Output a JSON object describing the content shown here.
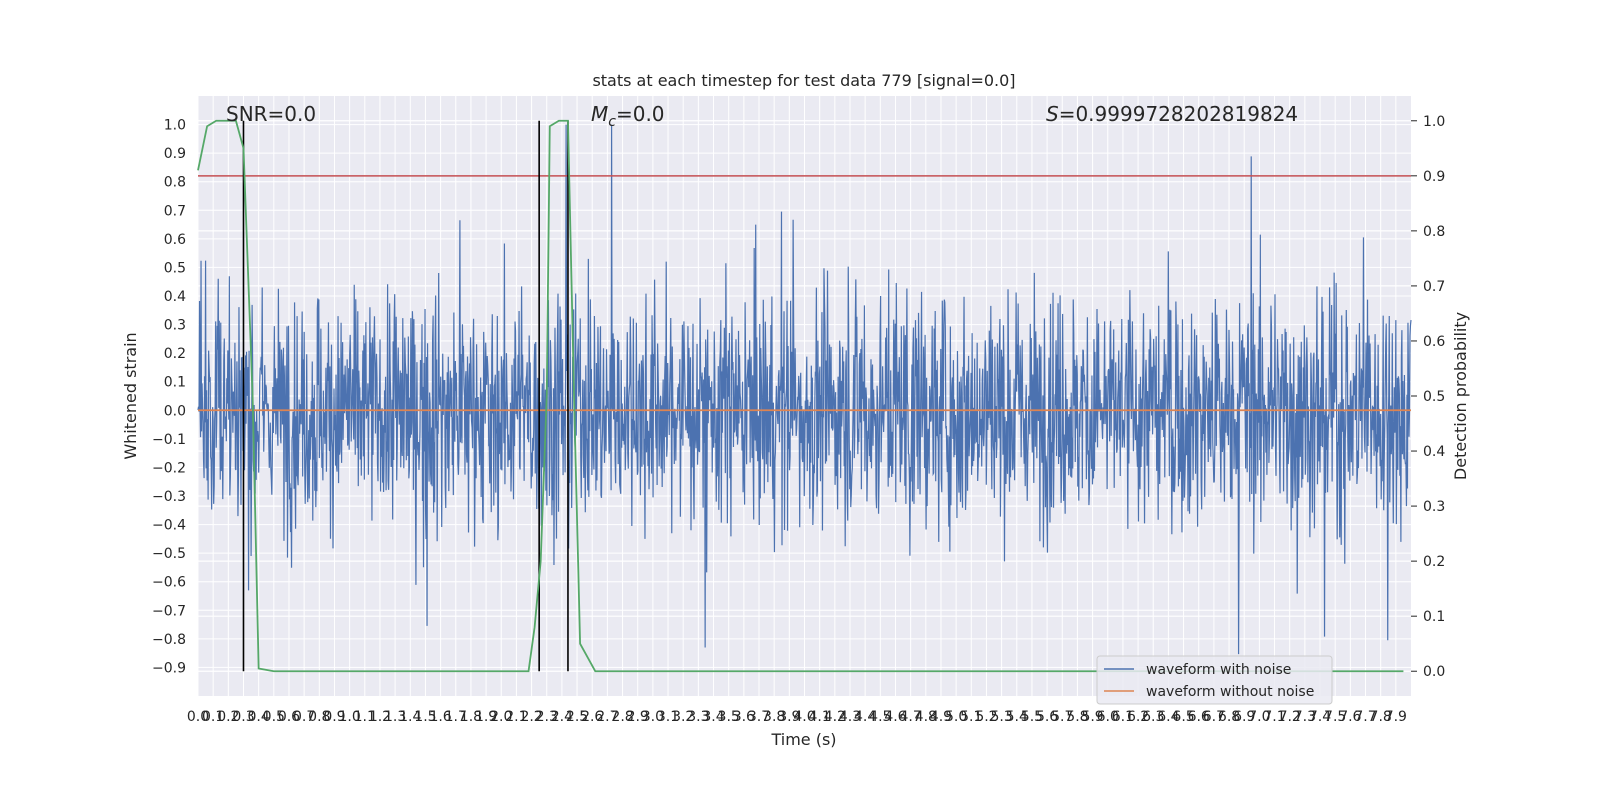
{
  "chart_data": {
    "type": "line",
    "title": "stats at each timestep for test data 779 [signal=0.0]",
    "xlabel": "Time (s)",
    "ylabel": "Whitened strain",
    "y2label": "Detection probability",
    "xlim": [
      0.0,
      8.0
    ],
    "ylim": [
      -1.0,
      1.1
    ],
    "y2lim": [
      -0.045,
      1.045
    ],
    "x_ticks": [
      "0.0",
      "0.1",
      "0.2",
      "0.3",
      "0.4",
      "0.5",
      "0.6",
      "0.7",
      "0.8",
      "0.9",
      "1.0",
      "1.1",
      "1.2",
      "1.3",
      "1.4",
      "1.5",
      "1.6",
      "1.7",
      "1.8",
      "1.9",
      "2.0",
      "2.1",
      "2.2",
      "2.3",
      "2.4",
      "2.5",
      "2.6",
      "2.7",
      "2.8",
      "2.9",
      "3.0",
      "3.1",
      "3.2",
      "3.3",
      "3.4",
      "3.5",
      "3.6",
      "3.7",
      "3.8",
      "3.9",
      "4.0",
      "4.1",
      "4.2",
      "4.3",
      "4.4",
      "4.5",
      "4.6",
      "4.7",
      "4.8",
      "4.9",
      "5.0",
      "5.1",
      "5.2",
      "5.3",
      "5.4",
      "5.5",
      "5.6",
      "5.7",
      "5.8",
      "5.9",
      "6.0",
      "6.1",
      "6.2",
      "6.3",
      "6.4",
      "6.5",
      "6.6",
      "6.7",
      "6.8",
      "6.9",
      "7.0",
      "7.1",
      "7.2",
      "7.3",
      "7.4",
      "7.5",
      "7.6",
      "7.7",
      "7.8",
      "7.9"
    ],
    "y_ticks": [
      "1.0",
      "0.9",
      "0.8",
      "0.7",
      "0.6",
      "0.5",
      "0.4",
      "0.3",
      "0.2",
      "0.1",
      "0.0",
      "-0.1",
      "-0.2",
      "-0.3",
      "-0.4",
      "-0.5",
      "-0.6",
      "-0.7",
      "-0.8",
      "-0.9"
    ],
    "y2_ticks": [
      "1.0",
      "0.9",
      "0.8",
      "0.7",
      "0.6",
      "0.5",
      "0.4",
      "0.3",
      "0.2",
      "0.1",
      "0.0"
    ],
    "annotations": {
      "snr": "SNR=0.0",
      "mc_symbol": "M",
      "mc_subscript": "c",
      "mc_value": "=0.0",
      "s_symbol": "S",
      "s_value": "=0.9999728202819824"
    },
    "legend": {
      "placement": "lower-right",
      "entries": [
        {
          "label": "waveform with noise",
          "color": "#4c72b0"
        },
        {
          "label": "waveform without noise",
          "color": "#dd8452"
        }
      ]
    },
    "series": [
      {
        "name": "waveform with noise",
        "color": "#4c72b0",
        "kind": "noise",
        "envelope_y": [
          -0.91,
          1.0
        ]
      },
      {
        "name": "waveform without noise",
        "color": "#dd8452",
        "y": 0.0
      },
      {
        "color": "#55a868",
        "axis": "right",
        "x": [
          0.0,
          0.06,
          0.12,
          0.2,
          0.25,
          0.3,
          0.36,
          0.4,
          0.5,
          1.0,
          1.5,
          2.0,
          2.18,
          2.22,
          2.26,
          2.3,
          2.32,
          2.38,
          2.44,
          2.48,
          2.52,
          2.58,
          2.62,
          2.7,
          3.5,
          5.0,
          7.0,
          7.95
        ],
        "y": [
          0.91,
          0.99,
          1.0,
          1.0,
          1.0,
          0.95,
          0.5,
          0.005,
          0.0,
          0.0,
          0.0,
          0.0,
          0.0,
          0.08,
          0.2,
          0.5,
          0.99,
          1.0,
          1.0,
          0.5,
          0.05,
          0.02,
          0.0,
          0.0,
          0.0,
          0.0,
          0.0,
          0.0
        ]
      },
      {
        "color": "#c44e52",
        "kind": "threshold",
        "axis": "right",
        "y": 0.9
      }
    ],
    "vertical_markers": {
      "color": "#000000",
      "x": [
        0.3,
        2.25,
        2.44
      ],
      "y2_range": [
        0.0,
        1.0
      ]
    },
    "grid": true,
    "background": "#eaeaf2"
  }
}
